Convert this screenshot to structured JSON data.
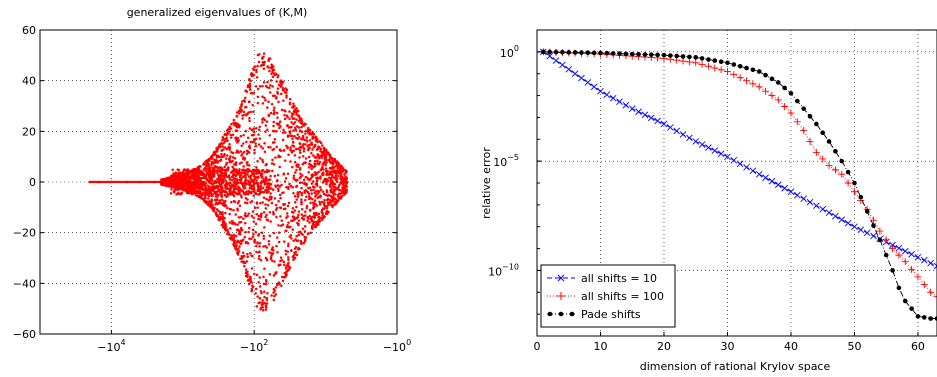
{
  "chart_data": [
    {
      "type": "scatter",
      "title": "generalized eigenvalues of (K,M)",
      "xlabel": "",
      "ylabel": "",
      "x_scale": "negative-log",
      "xlim": [
        -100000,
        -1
      ],
      "ylim": [
        -60,
        60
      ],
      "x_ticks": [
        {
          "value": -10000,
          "base": "−10",
          "exp": "4"
        },
        {
          "value": -100,
          "base": "−10",
          "exp": "2"
        },
        {
          "value": -1,
          "base": "−10",
          "exp": "0"
        }
      ],
      "y_ticks": [
        "60",
        "40",
        "20",
        "0",
        "−20",
        "−40",
        "−60"
      ],
      "y_tick_values": [
        60,
        40,
        20,
        0,
        -20,
        -40,
        -60
      ],
      "grid": true,
      "marker_color": "#ff0000",
      "series": [
        {
          "marker": "dot",
          "description_points_real_axis": [
            -20000,
            -15000,
            -10000,
            -6000,
            -4000,
            -2500,
            -1500,
            -1000,
            -700,
            -500
          ],
          "envelope": {
            "re": [
              -2000,
              -1000,
              -600,
              -400,
              -300,
              -200,
              -150,
              -120,
              -100,
              -90,
              -80,
              -70,
              -60,
              -50,
              -40,
              -30,
              -20,
              -12,
              -8,
              -5
            ],
            "max_abs_im": [
              1,
              3,
              6,
              10,
              16,
              24,
              32,
              40,
              46,
              50,
              51,
              51,
              49,
              46,
              40,
              33,
              24,
              16,
              10,
              4
            ]
          }
        }
      ]
    },
    {
      "type": "line",
      "title": "",
      "xlabel": "dimension of rational Krylov space",
      "ylabel": "relative error",
      "y_scale": "log",
      "xlim": [
        0,
        63
      ],
      "ylim": [
        1e-13,
        10
      ],
      "x_ticks": [
        "0",
        "10",
        "20",
        "30",
        "40",
        "50",
        "60"
      ],
      "x_tick_values": [
        0,
        10,
        20,
        30,
        40,
        50,
        60
      ],
      "y_ticks": [
        {
          "value": 1,
          "base": "10",
          "exp": "0"
        },
        {
          "value": 1e-05,
          "base": "10",
          "exp": "−5"
        },
        {
          "value": 1e-10,
          "base": "10",
          "exp": "−10"
        }
      ],
      "grid": true,
      "legend_position": "bottom-left",
      "series": [
        {
          "name": "all shifts = 10",
          "color": "#0000ff",
          "marker": "x",
          "line": "dashed",
          "x": [
            1,
            5,
            10,
            15,
            20,
            25,
            30,
            35,
            40,
            45,
            50,
            55,
            60,
            63
          ],
          "log10_y": [
            0,
            -0.8,
            -1.8,
            -2.6,
            -3.3,
            -4.1,
            -4.8,
            -5.6,
            -6.4,
            -7.2,
            -8.0,
            -8.7,
            -9.4,
            -9.8
          ]
        },
        {
          "name": "all shifts = 100",
          "color": "#ff0000",
          "marker": "plus",
          "line": "dotted",
          "x": [
            1,
            10,
            20,
            25,
            30,
            35,
            38,
            40,
            42,
            44,
            46,
            48,
            50,
            52,
            54,
            56,
            58,
            60,
            62,
            63
          ],
          "log10_y": [
            0,
            -0.1,
            -0.3,
            -0.5,
            -0.9,
            -1.6,
            -2.2,
            -2.8,
            -3.6,
            -4.6,
            -5.2,
            -5.6,
            -6.4,
            -7.2,
            -8.2,
            -9.0,
            -9.6,
            -10.3,
            -11.0,
            -11.2
          ]
        },
        {
          "name": "Pade shifts",
          "color": "#000000",
          "marker": "dot",
          "line": "dashdot",
          "x": [
            1,
            10,
            20,
            25,
            30,
            35,
            38,
            40,
            42,
            44,
            46,
            48,
            50,
            52,
            54,
            56,
            57,
            58,
            60,
            62,
            63
          ],
          "log10_y": [
            0,
            -0.05,
            -0.15,
            -0.25,
            -0.5,
            -0.9,
            -1.4,
            -1.9,
            -2.6,
            -3.3,
            -4.1,
            -5.0,
            -6.0,
            -7.3,
            -8.6,
            -10.0,
            -10.8,
            -11.4,
            -12.1,
            -12.2,
            -12.2
          ]
        }
      ]
    }
  ]
}
